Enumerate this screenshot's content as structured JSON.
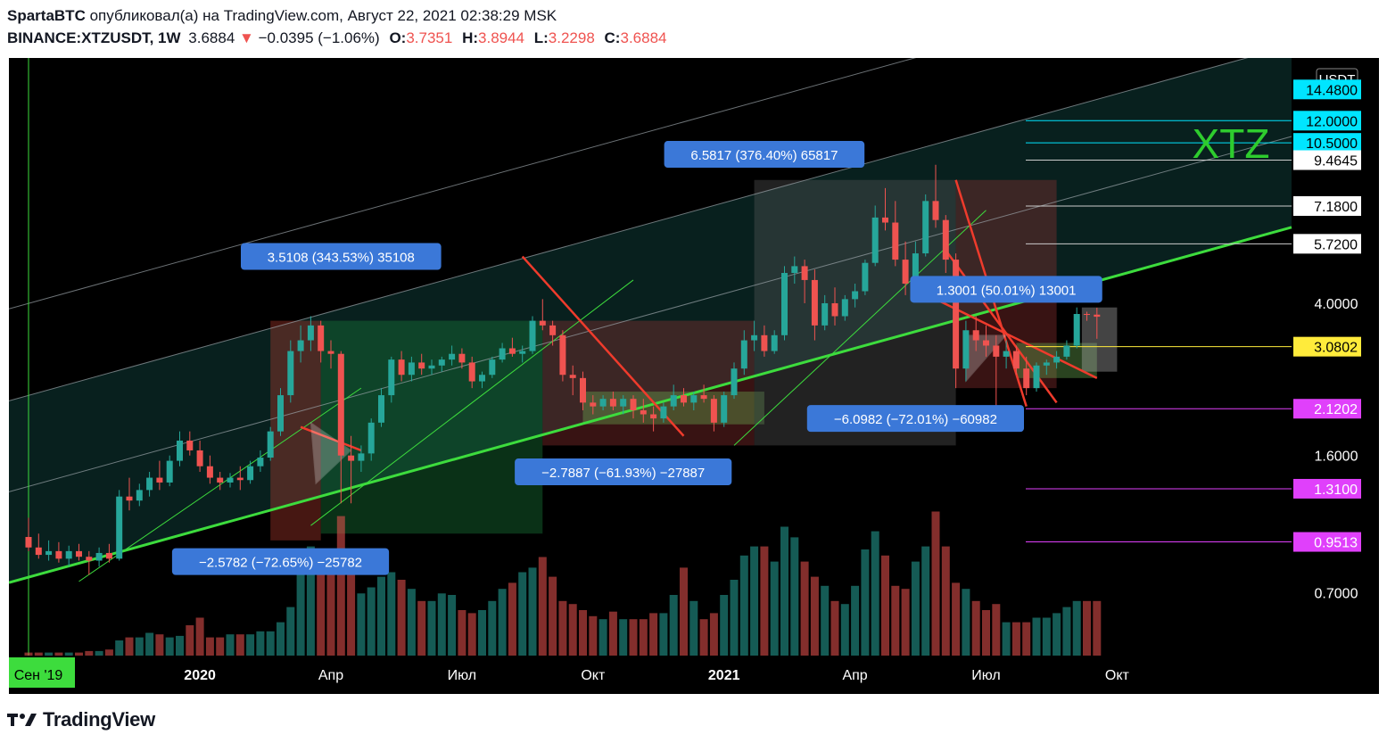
{
  "header": {
    "author": "SpartaBTC",
    "published_text": "опубликовал(а) на TradingView.com, Август 22, 2021 02:38:29 MSK",
    "symbol": "BINANCE:XTZUSDT, 1W",
    "last": "3.6884",
    "change": "−0.0395 (−1.06%)",
    "o_label": "O:",
    "o": "3.7351",
    "h_label": "H:",
    "h": "3.8944",
    "l_label": "L:",
    "l": "3.2298",
    "c_label": "C:",
    "c": "3.6884"
  },
  "chart_data": {
    "type": "candlestick",
    "symbol": "XTZUSDT",
    "interval": "1W",
    "currency": "USDT",
    "watermark": "XTZ",
    "y_scale": "log",
    "ylim": [
      0.48,
      17.5
    ],
    "x_axis_ticks": [
      {
        "label": "Сен '19",
        "week": 0,
        "highlight": true
      },
      {
        "label": "2020",
        "week": 17,
        "bold": true
      },
      {
        "label": "Апр",
        "week": 30
      },
      {
        "label": "Июл",
        "week": 43
      },
      {
        "label": "Окт",
        "week": 56
      },
      {
        "label": "2021",
        "week": 69,
        "bold": true
      },
      {
        "label": "Апр",
        "week": 82
      },
      {
        "label": "Июл",
        "week": 95
      },
      {
        "label": "Окт",
        "week": 108
      }
    ],
    "price_axis_ticks": [
      {
        "value": 4.0,
        "label": "4.0000"
      },
      {
        "value": 1.6,
        "label": "1.6000"
      },
      {
        "value": 0.7,
        "label": "0.7000"
      }
    ],
    "price_levels": [
      {
        "value": 14.48,
        "label": "14.4800",
        "color": "#00e5ff",
        "text_color": "#000000",
        "line": false
      },
      {
        "value": 12.0,
        "label": "12.0000",
        "color": "#00e5ff",
        "text_color": "#000000",
        "line": true
      },
      {
        "value": 10.5,
        "label": "10.5000",
        "color": "#00e5ff",
        "text_color": "#000000",
        "line": true
      },
      {
        "value": 9.4645,
        "label": "9.4645",
        "color": "#ffffff",
        "text_color": "#000000",
        "line": true
      },
      {
        "value": 7.18,
        "label": "7.1800",
        "color": "#ffffff",
        "text_color": "#000000",
        "line": true
      },
      {
        "value": 5.72,
        "label": "5.7200",
        "color": "#ffffff",
        "text_color": "#000000",
        "line": true
      },
      {
        "value": 3.0802,
        "label": "3.0802",
        "color": "#ffeb3b",
        "text_color": "#000000",
        "line": true
      },
      {
        "value": 2.1202,
        "label": "2.1202",
        "color": "#e040fb",
        "text_color": "#ffffff",
        "line": true
      },
      {
        "value": 1.31,
        "label": "1.3100",
        "color": "#e040fb",
        "text_color": "#ffffff",
        "line": true
      },
      {
        "value": 0.9513,
        "label": "0.9513",
        "color": "#e040fb",
        "text_color": "#ffffff",
        "line": true
      }
    ],
    "annotations": [
      {
        "text": "3.5108 (343.53%) 35108",
        "week": 31,
        "price": 5.3
      },
      {
        "text": "6.5817 (376.40%) 65817",
        "week": 73,
        "price": 9.8
      },
      {
        "text": "1.3001 (50.01%) 13001",
        "week": 97,
        "price": 4.35
      },
      {
        "text": "−6.0982 (−72.01%) −60982",
        "week": 88,
        "price": 2.0
      },
      {
        "text": "−2.7887 (−61.93%) −27887",
        "week": 59,
        "price": 1.45
      },
      {
        "text": "−2.5782 (−72.65%) −25782",
        "week": 25,
        "price": 0.845
      }
    ],
    "candles_note": "weekly OHLC, week 0 = Sep 2019",
    "candles": [
      [
        0.98,
        1.1,
        0.9,
        0.92
      ],
      [
        0.92,
        1.0,
        0.86,
        0.88
      ],
      [
        0.88,
        0.96,
        0.85,
        0.9
      ],
      [
        0.9,
        0.95,
        0.84,
        0.86
      ],
      [
        0.86,
        0.93,
        0.82,
        0.9
      ],
      [
        0.9,
        0.94,
        0.85,
        0.87
      ],
      [
        0.87,
        0.9,
        0.78,
        0.85
      ],
      [
        0.85,
        0.92,
        0.82,
        0.89
      ],
      [
        0.89,
        0.94,
        0.84,
        0.86
      ],
      [
        0.86,
        1.3,
        0.85,
        1.25
      ],
      [
        1.25,
        1.4,
        1.15,
        1.22
      ],
      [
        1.22,
        1.35,
        1.18,
        1.3
      ],
      [
        1.3,
        1.45,
        1.25,
        1.4
      ],
      [
        1.4,
        1.55,
        1.3,
        1.36
      ],
      [
        1.36,
        1.6,
        1.33,
        1.55
      ],
      [
        1.55,
        1.85,
        1.5,
        1.75
      ],
      [
        1.75,
        1.85,
        1.6,
        1.65
      ],
      [
        1.65,
        1.75,
        1.45,
        1.5
      ],
      [
        1.5,
        1.6,
        1.35,
        1.4
      ],
      [
        1.4,
        1.45,
        1.3,
        1.36
      ],
      [
        1.36,
        1.44,
        1.32,
        1.4
      ],
      [
        1.4,
        1.5,
        1.3,
        1.38
      ],
      [
        1.38,
        1.55,
        1.35,
        1.5
      ],
      [
        1.5,
        1.65,
        1.45,
        1.58
      ],
      [
        1.58,
        1.9,
        1.55,
        1.85
      ],
      [
        1.85,
        2.4,
        1.8,
        2.3
      ],
      [
        2.3,
        3.2,
        2.2,
        3.0
      ],
      [
        3.0,
        3.5,
        2.8,
        3.2
      ],
      [
        3.2,
        3.7,
        3.0,
        3.5
      ],
      [
        3.5,
        3.6,
        2.8,
        3.0
      ],
      [
        3.0,
        3.2,
        2.7,
        2.95
      ],
      [
        2.95,
        3.0,
        1.2,
        1.6
      ],
      [
        1.6,
        1.8,
        1.2,
        1.55
      ],
      [
        1.55,
        1.7,
        1.45,
        1.62
      ],
      [
        1.62,
        2.0,
        1.55,
        1.95
      ],
      [
        1.95,
        2.4,
        1.9,
        2.3
      ],
      [
        2.3,
        2.9,
        2.2,
        2.85
      ],
      [
        2.85,
        3.0,
        2.5,
        2.6
      ],
      [
        2.6,
        2.9,
        2.5,
        2.8
      ],
      [
        2.8,
        2.95,
        2.6,
        2.7
      ],
      [
        2.7,
        2.85,
        2.6,
        2.75
      ],
      [
        2.75,
        2.9,
        2.65,
        2.85
      ],
      [
        2.85,
        3.1,
        2.75,
        2.95
      ],
      [
        2.95,
        3.05,
        2.7,
        2.8
      ],
      [
        2.8,
        2.9,
        2.4,
        2.5
      ],
      [
        2.5,
        2.65,
        2.4,
        2.6
      ],
      [
        2.6,
        2.9,
        2.55,
        2.85
      ],
      [
        2.85,
        3.15,
        2.8,
        3.05
      ],
      [
        3.05,
        3.25,
        2.9,
        2.95
      ],
      [
        2.95,
        3.1,
        2.8,
        3.0
      ],
      [
        3.0,
        3.7,
        2.95,
        3.6
      ],
      [
        3.6,
        4.1,
        3.4,
        3.5
      ],
      [
        3.5,
        3.6,
        3.1,
        3.3
      ],
      [
        3.3,
        3.4,
        2.5,
        2.6
      ],
      [
        2.6,
        2.75,
        2.3,
        2.55
      ],
      [
        2.55,
        2.65,
        2.1,
        2.2
      ],
      [
        2.2,
        2.3,
        2.05,
        2.15
      ],
      [
        2.15,
        2.3,
        2.1,
        2.25
      ],
      [
        2.25,
        2.35,
        2.1,
        2.15
      ],
      [
        2.15,
        2.3,
        2.05,
        2.25
      ],
      [
        2.25,
        2.3,
        2.0,
        2.1
      ],
      [
        2.1,
        2.25,
        1.95,
        2.05
      ],
      [
        2.05,
        2.15,
        1.85,
        2.0
      ],
      [
        2.0,
        2.2,
        1.95,
        2.15
      ],
      [
        2.15,
        2.45,
        2.1,
        2.3
      ],
      [
        2.3,
        2.4,
        2.15,
        2.2
      ],
      [
        2.2,
        2.35,
        2.1,
        2.3
      ],
      [
        2.3,
        2.45,
        2.2,
        2.25
      ],
      [
        2.25,
        2.3,
        1.85,
        1.95
      ],
      [
        1.95,
        2.35,
        1.9,
        2.3
      ],
      [
        2.3,
        2.8,
        2.25,
        2.7
      ],
      [
        2.7,
        3.4,
        2.6,
        3.2
      ],
      [
        3.2,
        3.6,
        3.0,
        3.3
      ],
      [
        3.3,
        3.5,
        2.9,
        3.0
      ],
      [
        3.0,
        3.4,
        2.95,
        3.3
      ],
      [
        3.3,
        5.0,
        3.2,
        4.8
      ],
      [
        4.8,
        5.3,
        4.5,
        5.0
      ],
      [
        5.0,
        5.2,
        4.0,
        4.6
      ],
      [
        4.6,
        4.9,
        3.2,
        3.5
      ],
      [
        3.5,
        4.2,
        3.4,
        4.0
      ],
      [
        4.0,
        4.4,
        3.5,
        3.7
      ],
      [
        3.7,
        4.2,
        3.6,
        4.1
      ],
      [
        4.1,
        4.5,
        3.9,
        4.3
      ],
      [
        4.3,
        5.2,
        4.2,
        5.1
      ],
      [
        5.1,
        7.2,
        5.0,
        6.7
      ],
      [
        6.7,
        8.0,
        6.2,
        6.5
      ],
      [
        6.5,
        7.4,
        5.0,
        5.2
      ],
      [
        5.2,
        5.8,
        4.2,
        4.5
      ],
      [
        4.5,
        5.8,
        4.4,
        5.4
      ],
      [
        5.4,
        7.7,
        5.3,
        7.4
      ],
      [
        7.4,
        9.2,
        6.3,
        6.6
      ],
      [
        6.6,
        6.8,
        4.8,
        5.2
      ],
      [
        5.2,
        5.4,
        2.4,
        2.7
      ],
      [
        2.7,
        3.6,
        2.5,
        3.4
      ],
      [
        3.4,
        3.7,
        3.0,
        3.2
      ],
      [
        3.2,
        3.5,
        2.9,
        3.1
      ],
      [
        3.1,
        3.3,
        2.1,
        2.9
      ],
      [
        2.9,
        3.2,
        2.7,
        3.0
      ],
      [
        3.0,
        3.1,
        2.6,
        2.7
      ],
      [
        2.7,
        2.9,
        2.3,
        2.4
      ],
      [
        2.4,
        2.8,
        2.35,
        2.75
      ],
      [
        2.75,
        2.85,
        2.6,
        2.8
      ],
      [
        2.8,
        3.0,
        2.7,
        2.9
      ],
      [
        2.9,
        3.2,
        2.85,
        3.1
      ],
      [
        3.1,
        3.9,
        3.05,
        3.75
      ],
      [
        3.75,
        3.8,
        3.6,
        3.73
      ],
      [
        3.7351,
        3.8944,
        3.2298,
        3.6884
      ]
    ],
    "volume_note": "relative weekly volume (0-1)",
    "volume": [
      0.02,
      0.02,
      0.02,
      0.02,
      0.02,
      0.02,
      0.03,
      0.03,
      0.04,
      0.1,
      0.12,
      0.12,
      0.15,
      0.14,
      0.12,
      0.13,
      0.2,
      0.25,
      0.12,
      0.12,
      0.14,
      0.14,
      0.14,
      0.16,
      0.16,
      0.22,
      0.32,
      0.55,
      0.72,
      0.66,
      0.55,
      0.92,
      0.62,
      0.41,
      0.45,
      0.52,
      0.55,
      0.5,
      0.44,
      0.36,
      0.36,
      0.41,
      0.4,
      0.3,
      0.28,
      0.3,
      0.36,
      0.44,
      0.48,
      0.55,
      0.58,
      0.65,
      0.52,
      0.36,
      0.34,
      0.3,
      0.26,
      0.24,
      0.29,
      0.24,
      0.24,
      0.24,
      0.28,
      0.28,
      0.4,
      0.58,
      0.36,
      0.24,
      0.28,
      0.4,
      0.5,
      0.66,
      0.72,
      0.72,
      0.62,
      0.85,
      0.78,
      0.62,
      0.52,
      0.46,
      0.36,
      0.34,
      0.46,
      0.7,
      0.82,
      0.66,
      0.46,
      0.44,
      0.62,
      0.72,
      0.95,
      0.72,
      0.48,
      0.44,
      0.36,
      0.3,
      0.34,
      0.22,
      0.22,
      0.22,
      0.25,
      0.25,
      0.28,
      0.32,
      0.36,
      0.36,
      0.36
    ]
  }
}
